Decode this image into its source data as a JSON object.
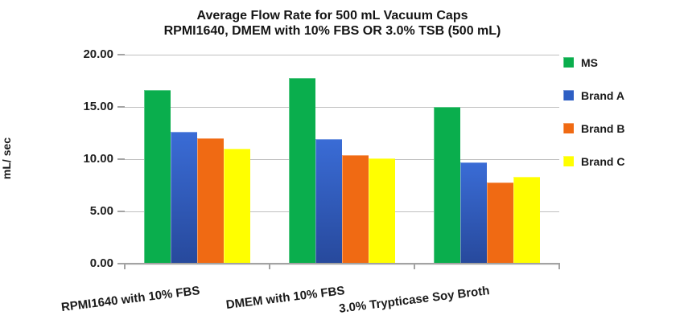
{
  "chart_data": {
    "type": "bar",
    "title": "Average Flow Rate for 500 mL Vacuum Caps",
    "subtitle": "RPMI1640, DMEM with 10% FBS OR 3.0% TSB (500 mL)",
    "ylabel": "mL/ sec",
    "ylim": [
      0,
      20
    ],
    "ytick_step": 5,
    "yticks": [
      {
        "value": 20,
        "label": "20.00"
      },
      {
        "value": 15,
        "label": "15.00"
      },
      {
        "value": 10,
        "label": "10.00"
      },
      {
        "value": 5,
        "label": "5.00"
      },
      {
        "value": 0,
        "label": "0.00"
      }
    ],
    "categories": [
      "RPMI1640 with 10% FBS",
      "DMEM with 10% FBS",
      "3.0% Trypticase Soy Broth"
    ],
    "series": [
      {
        "name": "MS",
        "color": "#0aae4d",
        "values": [
          16.6,
          17.8,
          15.0
        ]
      },
      {
        "name": "Brand A",
        "color": "#2e5fc4",
        "gradient_top": "#3a6cd6",
        "gradient_bottom": "#27499c",
        "values": [
          12.6,
          11.9,
          9.7
        ]
      },
      {
        "name": "Brand B",
        "color": "#f06a13",
        "values": [
          12.0,
          10.4,
          7.8
        ]
      },
      {
        "name": "Brand C",
        "color": "#ffff00",
        "values": [
          11.0,
          10.1,
          8.3
        ]
      }
    ],
    "grid": true,
    "legend_position": "right",
    "colors": {
      "gridline": "#bfbfbf",
      "axis": "#a3a3a3",
      "text": "#1a1a1a",
      "background": "#ffffff"
    }
  }
}
